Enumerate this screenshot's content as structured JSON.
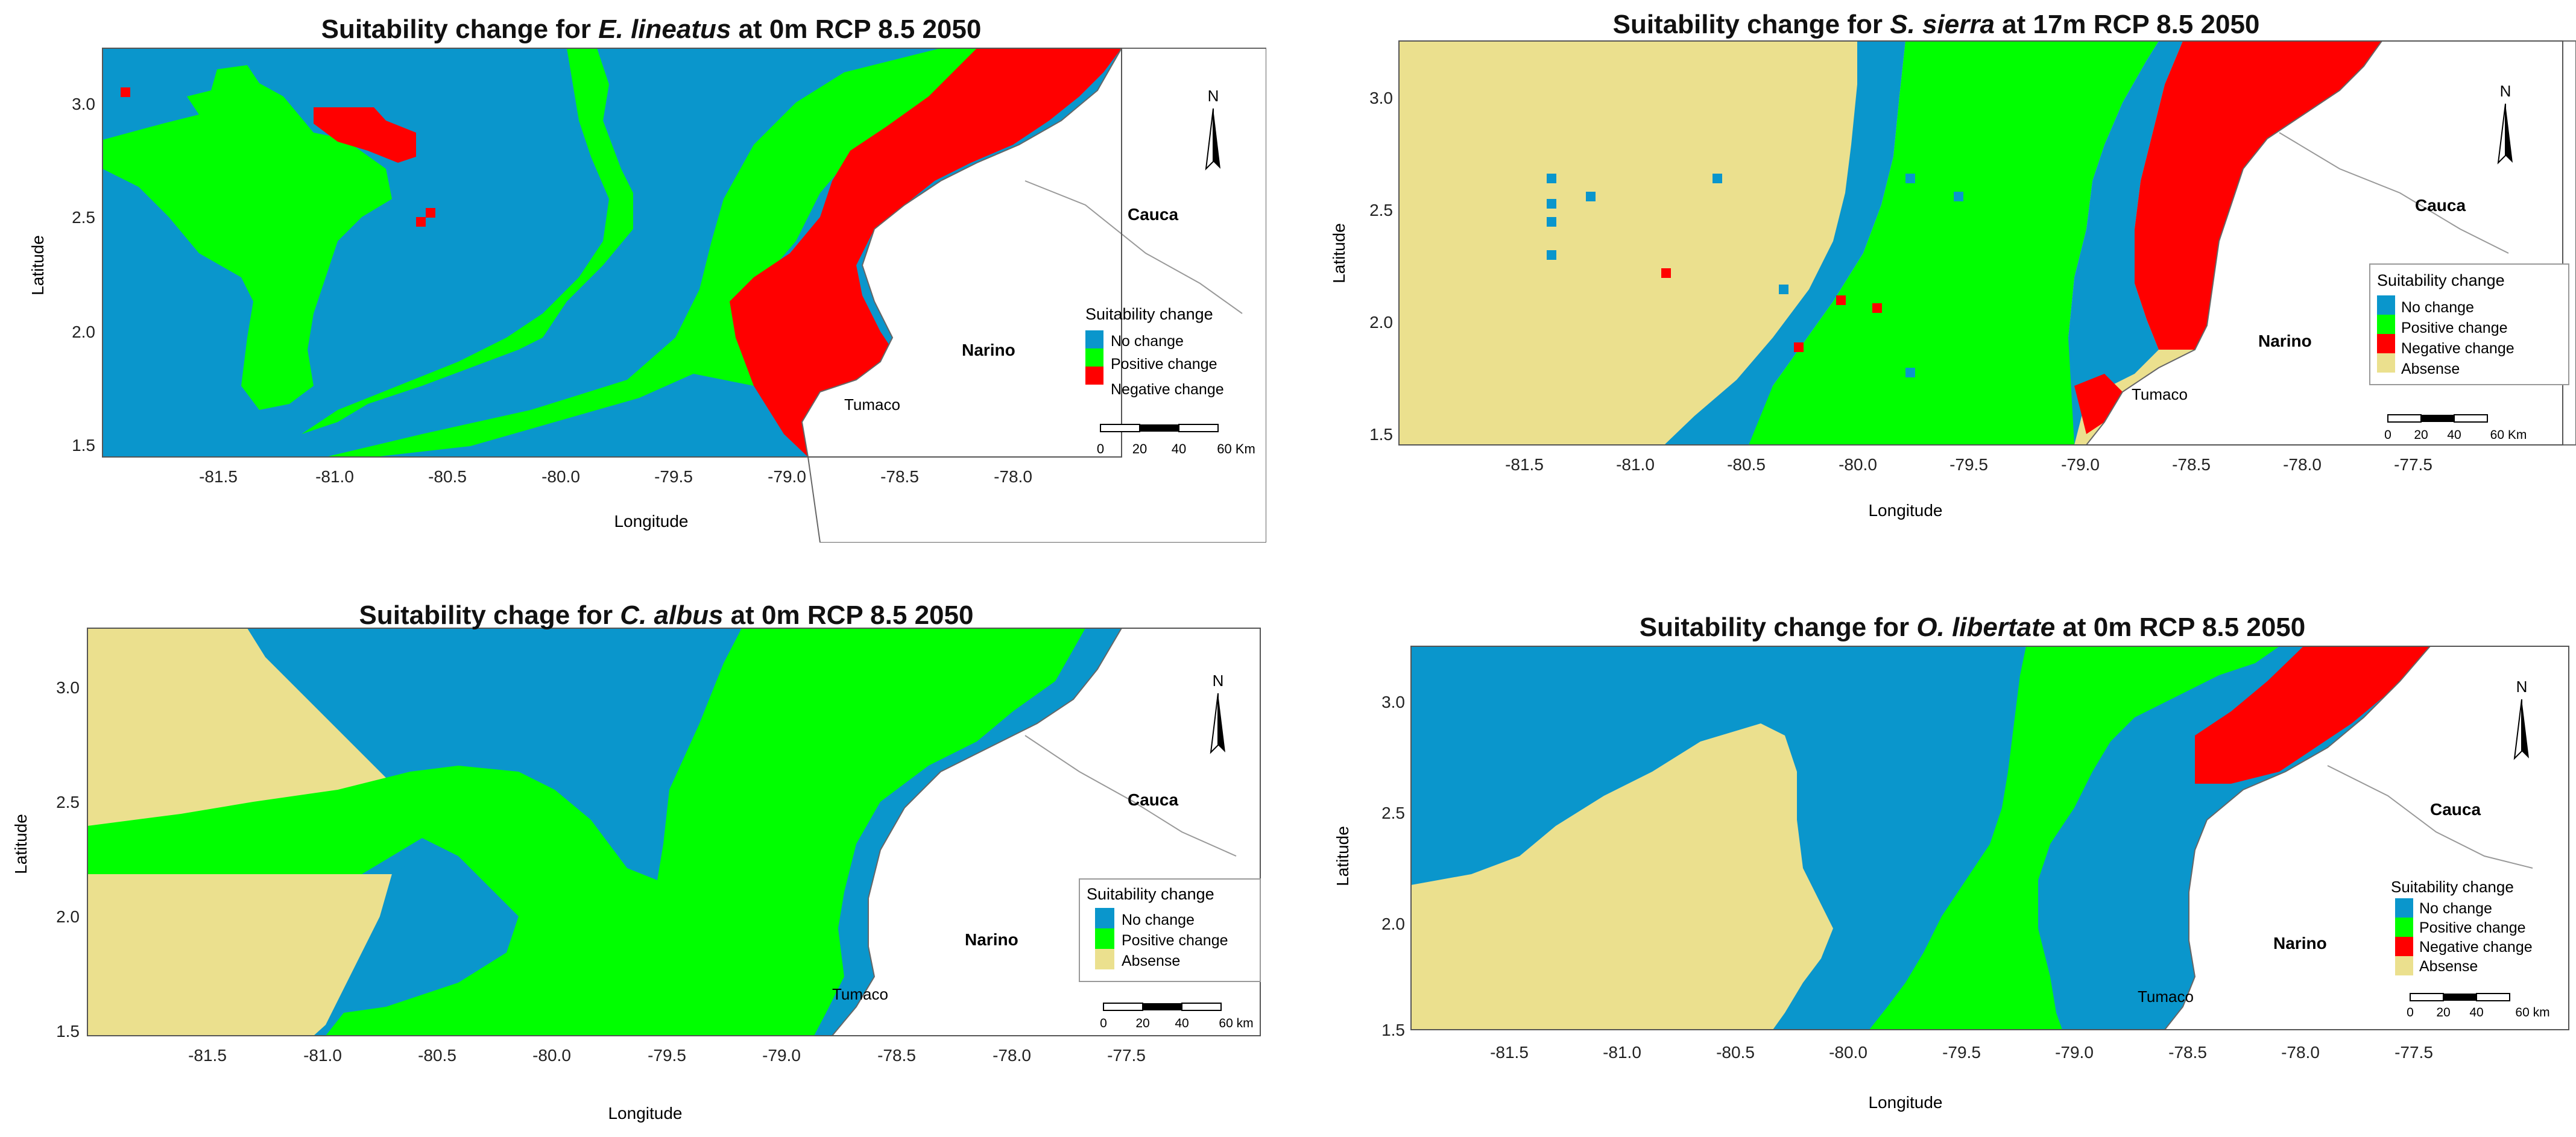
{
  "colors": {
    "no_change": "#0a96cc",
    "positive_change": "#00ff00",
    "negative_change": "#ff0000",
    "absense": "#ebe08e",
    "land": "#ffffff",
    "outline": "#9a9a9a"
  },
  "map_labels": {
    "cauca": "Cauca",
    "narino": "Narino",
    "tumaco": "Tumaco",
    "north": "N"
  },
  "panels": [
    {
      "title_prefix": "Suitability change for ",
      "species": "E. lineatus",
      "title_suffix": " at 0m RCP 8.5 2050",
      "xlabel": "Longitude",
      "ylabel": "Latitude",
      "x_ticks": [
        "-81.5",
        "-81.0",
        "-80.5",
        "-80.0",
        "-79.5",
        "-79.0",
        "-78.5",
        "-78.0"
      ],
      "y_ticks": [
        "3.0",
        "2.5",
        "2.0",
        "1.5"
      ],
      "legend_title": "Suitability change",
      "legend_items": [
        {
          "label": "No change",
          "color": "#0a96cc"
        },
        {
          "label": "Positive change",
          "color": "#00ff00"
        },
        {
          "label": "Negative change",
          "color": "#ff0000"
        }
      ],
      "scale_ticks": [
        "0",
        "20",
        "40",
        "60 Km"
      ]
    },
    {
      "title_prefix": "Suitability change for ",
      "species": "S. sierra",
      "title_suffix": " at 17m RCP 8.5 2050",
      "xlabel": "Longitude",
      "ylabel": "Latitude",
      "x_ticks": [
        "-81.5",
        "-81.0",
        "-80.5",
        "-80.0",
        "-79.5",
        "-79.0",
        "-78.5",
        "-78.0",
        "-77.5"
      ],
      "y_ticks": [
        "3.0",
        "2.5",
        "2.0",
        "1.5"
      ],
      "legend_title": "Suitability change",
      "legend_items": [
        {
          "label": "No change",
          "color": "#0a96cc"
        },
        {
          "label": "Positive change",
          "color": "#00ff00"
        },
        {
          "label": "Negative change",
          "color": "#ff0000"
        },
        {
          "label": "Absense",
          "color": "#ebe08e"
        }
      ],
      "scale_ticks": [
        "0",
        "20",
        "40",
        "60 Km"
      ]
    },
    {
      "title_prefix": "Suitability chage for ",
      "species": "C. albus",
      "title_suffix": " at 0m RCP 8.5 2050",
      "xlabel": "Longitude",
      "ylabel": "Latitude",
      "x_ticks": [
        "-81.5",
        "-81.0",
        "-80.5",
        "-80.0",
        "-79.5",
        "-79.0",
        "-78.5",
        "-78.0",
        "-77.5"
      ],
      "y_ticks": [
        "3.0",
        "2.5",
        "2.0",
        "1.5"
      ],
      "legend_title": "Suitability change",
      "legend_items": [
        {
          "label": "No change",
          "color": "#0a96cc"
        },
        {
          "label": "Positive change",
          "color": "#00ff00"
        },
        {
          "label": "Absense",
          "color": "#ebe08e"
        }
      ],
      "scale_ticks": [
        "0",
        "20",
        "40",
        "60 km"
      ]
    },
    {
      "title_prefix": "Suitability change for ",
      "species": "O. libertate",
      "title_suffix": " at 0m RCP 8.5 2050",
      "xlabel": "Longitude",
      "ylabel": "Latitude",
      "x_ticks": [
        "-81.5",
        "-81.0",
        "-80.5",
        "-80.0",
        "-79.5",
        "-79.0",
        "-78.5",
        "-78.0",
        "-77.5"
      ],
      "y_ticks": [
        "3.0",
        "2.5",
        "2.0",
        "1.5"
      ],
      "legend_title": "Suitability change",
      "legend_items": [
        {
          "label": "No change",
          "color": "#0a96cc"
        },
        {
          "label": "Positive change",
          "color": "#00ff00"
        },
        {
          "label": "Negative change",
          "color": "#ff0000"
        },
        {
          "label": "Absense",
          "color": "#ebe08e"
        }
      ],
      "scale_ticks": [
        "0",
        "20",
        "40",
        "60 km"
      ]
    }
  ]
}
